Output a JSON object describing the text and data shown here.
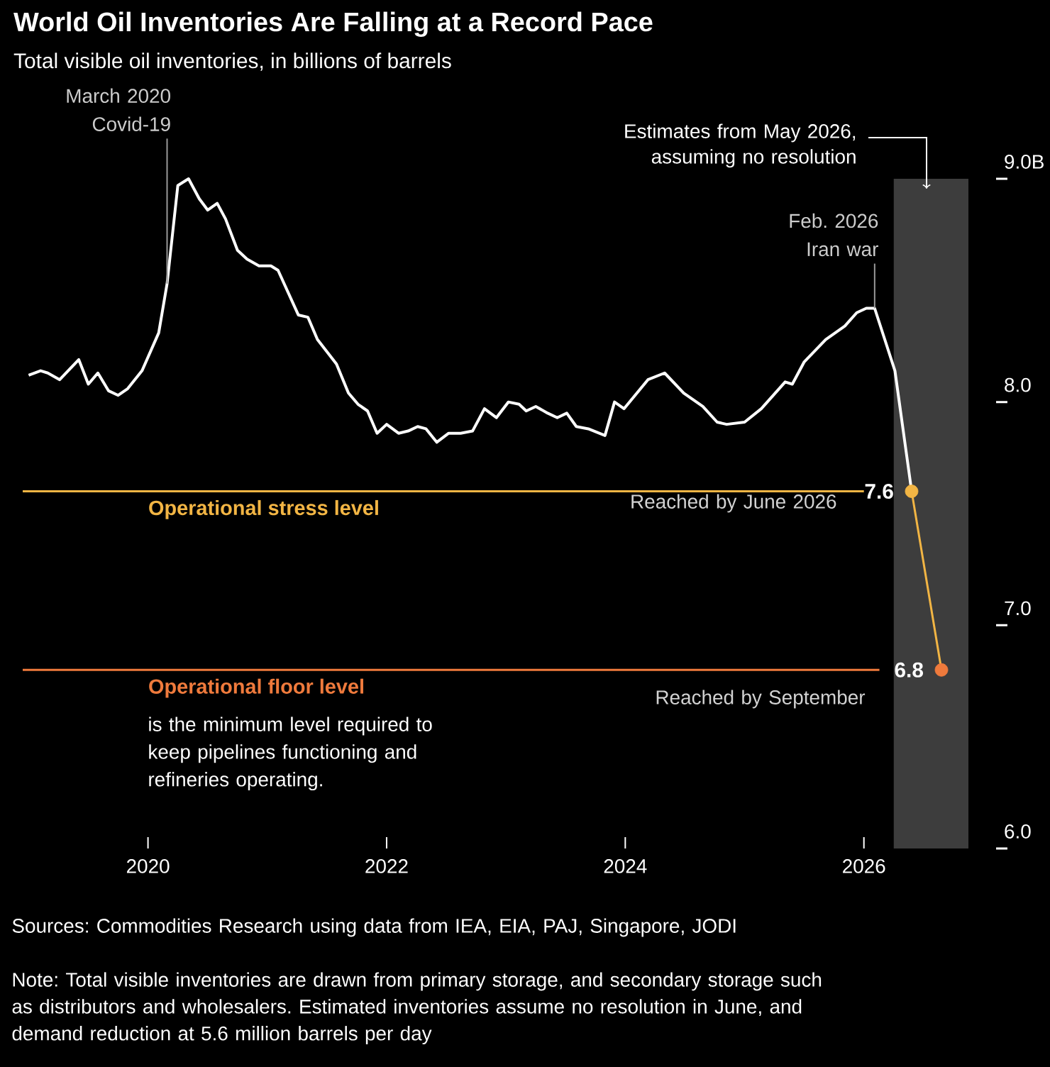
{
  "chart_data": {
    "type": "line",
    "title": "World Oil Inventories Are Falling at a Record Pace",
    "subtitle": "Total visible oil inventories, in billions of barrels",
    "xlim": [
      2018.95,
      2026.87
    ],
    "ylim": [
      6,
      9
    ],
    "xticks": [
      2020,
      2022,
      2024,
      2026
    ],
    "yticks": [
      {
        "value": 6,
        "label": "6.0"
      },
      {
        "value": 7,
        "label": "7.0"
      },
      {
        "value": 8,
        "label": "8.0"
      },
      {
        "value": 9,
        "label": "9.0B"
      }
    ],
    "grid": false,
    "marker": "none",
    "line_style": "solid",
    "series": [
      {
        "color": "#ffffff",
        "x": [
          2019.0,
          2019.1,
          2019.16,
          2019.26,
          2019.42,
          2019.5,
          2019.58,
          2019.67,
          2019.75,
          2019.83,
          2019.95,
          2020.09,
          2020.16,
          2020.25,
          2020.34,
          2020.43,
          2020.5,
          2020.58,
          2020.65,
          2020.75,
          2020.83,
          2020.93,
          2021.03,
          2021.09,
          2021.26,
          2021.34,
          2021.42,
          2021.58,
          2021.68,
          2021.76,
          2021.84,
          2021.92,
          2022.0,
          2022.1,
          2022.18,
          2022.26,
          2022.33,
          2022.42,
          2022.52,
          2022.62,
          2022.72,
          2022.82,
          2022.92,
          2023.02,
          2023.11,
          2023.17,
          2023.25,
          2023.35,
          2023.43,
          2023.51,
          2023.59,
          2023.69,
          2023.83,
          2023.91,
          2023.99,
          2024.19,
          2024.33,
          2024.49,
          2024.65,
          2024.77,
          2024.85,
          2025.0,
          2025.14,
          2025.34,
          2025.4,
          2025.5,
          2025.68,
          2025.84,
          2025.94,
          2026.02,
          2026.09,
          2026.26,
          2026.4
        ],
        "values": [
          8.12,
          8.14,
          8.13,
          8.1,
          8.19,
          8.08,
          8.13,
          8.05,
          8.03,
          8.06,
          8.14,
          8.31,
          8.53,
          8.97,
          9.0,
          8.91,
          8.86,
          8.89,
          8.82,
          8.68,
          8.64,
          8.61,
          8.61,
          8.59,
          8.39,
          8.38,
          8.28,
          8.17,
          8.04,
          7.99,
          7.96,
          7.86,
          7.9,
          7.86,
          7.87,
          7.89,
          7.88,
          7.82,
          7.86,
          7.86,
          7.87,
          7.97,
          7.93,
          8.0,
          7.99,
          7.96,
          7.98,
          7.95,
          7.93,
          7.95,
          7.89,
          7.88,
          7.85,
          8.0,
          7.97,
          8.1,
          8.13,
          8.04,
          7.98,
          7.91,
          7.9,
          7.91,
          7.97,
          8.09,
          8.08,
          8.18,
          8.28,
          8.34,
          8.4,
          8.42,
          8.42,
          8.14,
          7.6
        ]
      },
      {
        "color": "#f2b544",
        "colors": [
          "#f2b544",
          "#ef7a3c"
        ],
        "marker": "circle",
        "x": [
          2026.4,
          2026.65
        ],
        "values": [
          7.6,
          6.8
        ],
        "value_labels": [
          "7.6",
          "6.8"
        ]
      }
    ],
    "bands": [
      {
        "axis": "x",
        "from": 2026.25,
        "to": 2026.87,
        "color": "#3d3d3d"
      }
    ],
    "ref_lines": [
      {
        "axis": "y",
        "value": 7.6,
        "label": "Operational stress level",
        "color": "#f2b544"
      },
      {
        "axis": "y",
        "value": 6.8,
        "label": "Operational floor level",
        "color": "#ef7a3c"
      }
    ],
    "annotations": [
      {
        "text": "March 2020 Covid-19",
        "x": 2020.16,
        "y": 8.53
      },
      {
        "text": "Feb. 2026 Iran war",
        "x": 2026.09,
        "y": 8.42
      },
      "Estimates from May 2026, assuming no resolution",
      "Reached by June 2026",
      "Reached by September",
      "is the minimum level required to keep pipelines functioning and refineries operating.",
      "Sources: Commodities Research using data from IEA, EIA, PAJ, Singapore, JODI",
      "Note: Total visible inventories are drawn from primary storage, and secondary storage such as distributors and wholesalers. Estimated inventories assume no resolution in June, and demand reduction at 5.6 million barrels per day"
    ]
  }
}
